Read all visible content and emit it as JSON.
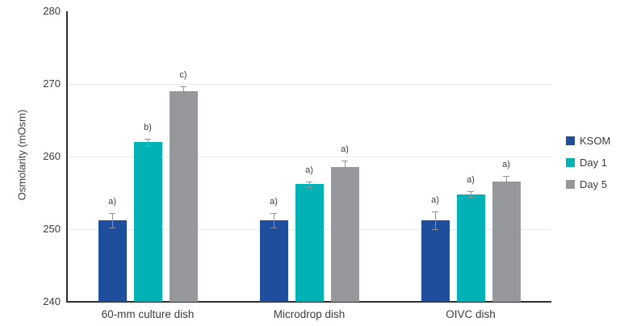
{
  "chart_data": {
    "type": "bar",
    "title": "",
    "xlabel": "",
    "ylabel": "Osmolarity (mOsm)",
    "ylim": [
      240,
      280
    ],
    "yticks": [
      240,
      250,
      260,
      270,
      280
    ],
    "gridlines": [
      250,
      260,
      270
    ],
    "grid": "horizontal",
    "legend_position": "right",
    "categories": [
      "60-mm culture dish",
      "Microdrop dish",
      "OIVC dish"
    ],
    "series": [
      {
        "name": "KSOM",
        "color": "#1f4f9c",
        "values": [
          251.2,
          251.2,
          251.2
        ],
        "errors": [
          1.0,
          1.0,
          1.2
        ],
        "sig_labels": [
          "a)",
          "a)",
          "a)"
        ]
      },
      {
        "name": "Day 1",
        "color": "#00b2b5",
        "values": [
          262.0,
          256.2,
          254.8
        ],
        "errors": [
          0.5,
          0.4,
          0.4
        ],
        "sig_labels": [
          "b)",
          "a)",
          "a)"
        ]
      },
      {
        "name": "Day 5",
        "color": "#97989c",
        "values": [
          269.0,
          258.6,
          256.6
        ],
        "errors": [
          0.7,
          0.8,
          0.7
        ],
        "sig_labels": [
          "c)",
          "a)",
          "a)"
        ]
      }
    ]
  },
  "colors": {
    "background": "#ffffff",
    "axis": "#2e2e2e",
    "gridline": "#e9e9e9",
    "text": "#3c3c3c",
    "error_bar": "#8f9499"
  }
}
